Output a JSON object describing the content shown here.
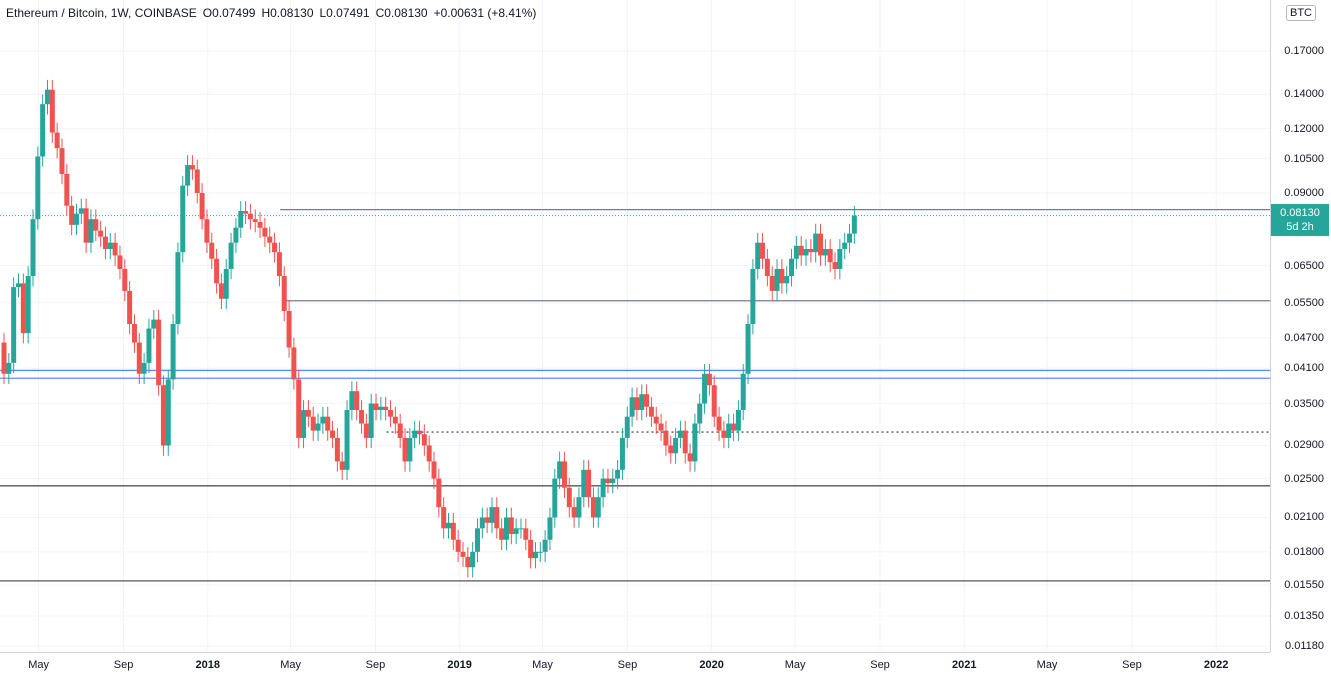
{
  "legend": {
    "symbol": "Ethereum / Bitcoin, 1W, COINBASE",
    "open": "O0.07499",
    "high": "H0.08130",
    "low": "L0.07491",
    "close": "C0.08130",
    "change": "+0.00631 (+8.41%)"
  },
  "currency": "BTC",
  "last_price": {
    "value": "0.08130",
    "countdown": "5d 2h"
  },
  "colors": {
    "up": "#26a69a",
    "down": "#ef5350",
    "level_line": "#787b86",
    "blue_line": "#5b8def",
    "axis_text": "#131722"
  },
  "chart_data": {
    "type": "candlestick",
    "title": "Ethereum / Bitcoin, 1W, COINBASE",
    "y_scale": "log",
    "ylim": [
      0.0118,
      0.21
    ],
    "y_ticks": [
      "0.17000",
      "0.14000",
      "0.12000",
      "0.10500",
      "0.09000",
      "0.06500",
      "0.05500",
      "0.04700",
      "0.04100",
      "0.03500",
      "0.02900",
      "0.02500",
      "0.02100",
      "0.01800",
      "0.01550",
      "0.01350",
      "0.01180"
    ],
    "x_ticks": [
      {
        "label": "May",
        "date": "2017-05-01",
        "year": false
      },
      {
        "label": "Sep",
        "date": "2017-09-01",
        "year": false
      },
      {
        "label": "2018",
        "date": "2018-01-01",
        "year": true
      },
      {
        "label": "May",
        "date": "2018-05-01",
        "year": false
      },
      {
        "label": "Sep",
        "date": "2018-09-01",
        "year": false
      },
      {
        "label": "2019",
        "date": "2019-01-01",
        "year": true
      },
      {
        "label": "May",
        "date": "2019-05-01",
        "year": false
      },
      {
        "label": "Sep",
        "date": "2019-09-01",
        "year": false
      },
      {
        "label": "2020",
        "date": "2020-01-01",
        "year": true
      },
      {
        "label": "May",
        "date": "2020-05-01",
        "year": false
      },
      {
        "label": "Sep",
        "date": "2020-09-01",
        "year": false
      },
      {
        "label": "2021",
        "date": "2021-01-01",
        "year": true
      },
      {
        "label": "May",
        "date": "2021-05-01",
        "year": false
      },
      {
        "label": "Sep",
        "date": "2021-09-01",
        "year": false
      },
      {
        "label": "2022",
        "date": "2022-01-01",
        "year": true
      }
    ],
    "x_start": "2017-03-06",
    "candle_interval_days": 7,
    "horizontal_levels": [
      {
        "price": 0.0835,
        "style": "solid",
        "color": "#787b86",
        "from": "2018-04-16"
      },
      {
        "price": 0.0555,
        "style": "solid",
        "color": "#787b86",
        "from": "2018-04-23"
      },
      {
        "price": 0.0406,
        "style": "solid",
        "color": "#5b8def",
        "from": "2017-03-06"
      },
      {
        "price": 0.0392,
        "style": "solid",
        "color": "#5b8def",
        "from": "2017-03-06"
      },
      {
        "price": 0.0308,
        "style": "dotted",
        "color": "#555555",
        "from": "2018-09-17"
      },
      {
        "price": 0.0242,
        "style": "solid",
        "color": "#555555",
        "from": "2017-03-06"
      },
      {
        "price": 0.0158,
        "style": "solid",
        "color": "#555555",
        "from": "2017-03-06"
      }
    ],
    "last_close_line": {
      "price": 0.0813,
      "style": "dotted"
    },
    "close": [
      0.04,
      0.042,
      0.059,
      0.06,
      0.048,
      0.062,
      0.08,
      0.106,
      0.134,
      0.143,
      0.118,
      0.11,
      0.098,
      0.085,
      0.078,
      0.082,
      0.084,
      0.072,
      0.08,
      0.076,
      0.074,
      0.07,
      0.072,
      0.068,
      0.064,
      0.058,
      0.05,
      0.046,
      0.04,
      0.042,
      0.049,
      0.051,
      0.038,
      0.029,
      0.039,
      0.05,
      0.069,
      0.093,
      0.102,
      0.1,
      0.09,
      0.08,
      0.072,
      0.067,
      0.06,
      0.056,
      0.064,
      0.072,
      0.077,
      0.083,
      0.082,
      0.08,
      0.079,
      0.077,
      0.074,
      0.072,
      0.069,
      0.062,
      0.053,
      0.045,
      0.039,
      0.03,
      0.034,
      0.033,
      0.031,
      0.032,
      0.033,
      0.031,
      0.03,
      0.027,
      0.026,
      0.034,
      0.037,
      0.034,
      0.032,
      0.03,
      0.035,
      0.034,
      0.0345,
      0.034,
      0.033,
      0.032,
      0.03,
      0.027,
      0.03,
      0.031,
      0.0305,
      0.029,
      0.027,
      0.025,
      0.022,
      0.02,
      0.0205,
      0.019,
      0.018,
      0.0176,
      0.0168,
      0.018,
      0.02,
      0.021,
      0.0205,
      0.022,
      0.02,
      0.019,
      0.021,
      0.0195,
      0.02,
      0.02,
      0.019,
      0.0175,
      0.018,
      0.018,
      0.019,
      0.021,
      0.025,
      0.027,
      0.024,
      0.022,
      0.021,
      0.023,
      0.026,
      0.023,
      0.021,
      0.023,
      0.025,
      0.0245,
      0.025,
      0.026,
      0.03,
      0.033,
      0.036,
      0.034,
      0.0365,
      0.0345,
      0.033,
      0.032,
      0.031,
      0.029,
      0.028,
      0.03,
      0.031,
      0.028,
      0.027,
      0.032,
      0.035,
      0.04,
      0.038,
      0.033,
      0.031,
      0.03,
      0.032,
      0.031,
      0.034,
      0.04,
      0.05,
      0.064,
      0.072,
      0.067,
      0.062,
      0.058,
      0.064,
      0.06,
      0.062,
      0.067,
      0.071,
      0.068,
      0.07,
      0.069,
      0.075,
      0.068,
      0.07,
      0.066,
      0.064,
      0.07,
      0.072,
      0.075,
      0.0813
    ],
    "open": [
      0.046,
      0.04,
      0.042,
      0.059,
      0.06,
      0.048,
      0.062,
      0.08,
      0.106,
      0.134,
      0.143,
      0.118,
      0.11,
      0.098,
      0.085,
      0.078,
      0.082,
      0.084,
      0.072,
      0.08,
      0.076,
      0.074,
      0.07,
      0.072,
      0.068,
      0.064,
      0.058,
      0.05,
      0.046,
      0.04,
      0.042,
      0.049,
      0.051,
      0.038,
      0.029,
      0.039,
      0.05,
      0.069,
      0.093,
      0.102,
      0.1,
      0.09,
      0.08,
      0.072,
      0.067,
      0.06,
      0.056,
      0.064,
      0.072,
      0.077,
      0.083,
      0.082,
      0.08,
      0.079,
      0.077,
      0.074,
      0.072,
      0.069,
      0.062,
      0.053,
      0.045,
      0.039,
      0.03,
      0.034,
      0.033,
      0.031,
      0.032,
      0.033,
      0.031,
      0.03,
      0.027,
      0.026,
      0.034,
      0.037,
      0.034,
      0.032,
      0.03,
      0.035,
      0.034,
      0.0345,
      0.034,
      0.033,
      0.032,
      0.03,
      0.027,
      0.03,
      0.031,
      0.0305,
      0.029,
      0.027,
      0.025,
      0.022,
      0.02,
      0.0205,
      0.019,
      0.018,
      0.0176,
      0.0168,
      0.018,
      0.02,
      0.021,
      0.0205,
      0.022,
      0.02,
      0.019,
      0.021,
      0.0195,
      0.02,
      0.02,
      0.019,
      0.0175,
      0.018,
      0.018,
      0.019,
      0.021,
      0.025,
      0.027,
      0.024,
      0.022,
      0.021,
      0.023,
      0.026,
      0.023,
      0.021,
      0.023,
      0.025,
      0.0245,
      0.025,
      0.026,
      0.03,
      0.033,
      0.036,
      0.034,
      0.0365,
      0.0345,
      0.033,
      0.032,
      0.031,
      0.029,
      0.028,
      0.03,
      0.031,
      0.028,
      0.027,
      0.032,
      0.035,
      0.04,
      0.038,
      0.033,
      0.031,
      0.03,
      0.032,
      0.031,
      0.034,
      0.04,
      0.05,
      0.064,
      0.072,
      0.067,
      0.062,
      0.058,
      0.064,
      0.06,
      0.062,
      0.067,
      0.071,
      0.068,
      0.07,
      0.069,
      0.075,
      0.068,
      0.07,
      0.066,
      0.064,
      0.07,
      0.072,
      0.07499
    ]
  }
}
